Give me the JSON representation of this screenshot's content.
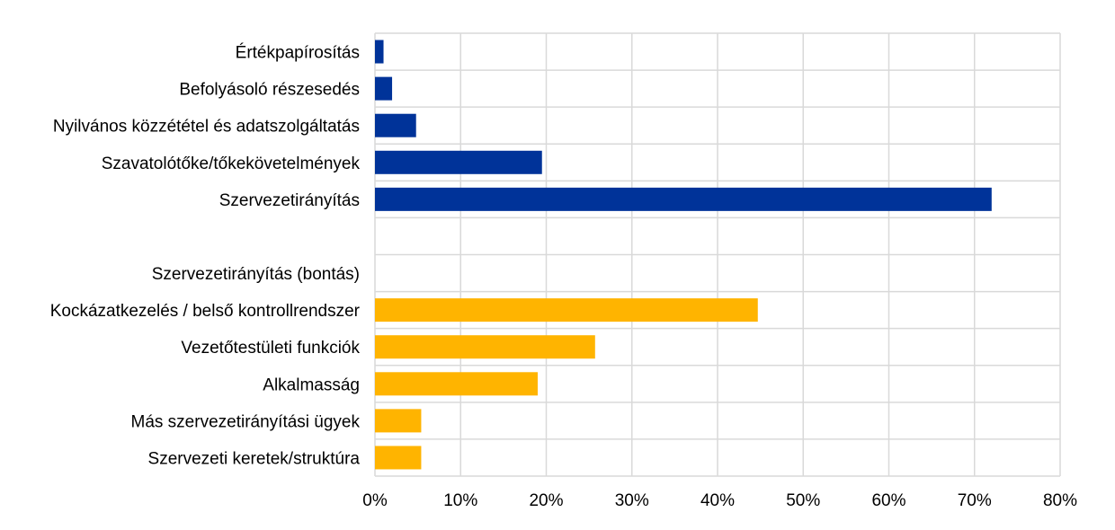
{
  "chart_data": {
    "type": "bar",
    "orientation": "horizontal",
    "title": "",
    "xlabel": "",
    "ylabel": "",
    "xlim": [
      0,
      80
    ],
    "x_ticks": [
      "0%",
      "10%",
      "20%",
      "30%",
      "40%",
      "50%",
      "60%",
      "70%",
      "80%"
    ],
    "grid": true,
    "legend": "none",
    "categories": [
      "Értékpapírosítás",
      "Befolyásoló részesedés",
      "Nyilvános közzététel és adatszolgáltatás",
      "Szavatolótőke/tőkekövetelmények",
      "Szervezetirányítás",
      "",
      "Szervezetirányítás (bontás)",
      "Kockázatkezelés / belső kontrollrendszer",
      "Vezetőtestületi funkciók",
      "Alkalmasság",
      "Más szervezetirányítási ügyek",
      "Szervezeti keretek/struktúra"
    ],
    "values": [
      1,
      2,
      4.8,
      19.5,
      72,
      null,
      null,
      44.7,
      25.7,
      19,
      5.4,
      5.4
    ],
    "colors": [
      "#003399",
      "#003399",
      "#003399",
      "#003399",
      "#003399",
      null,
      null,
      "#FFB400",
      "#FFB400",
      "#FFB400",
      "#FFB400",
      "#FFB400"
    ]
  }
}
